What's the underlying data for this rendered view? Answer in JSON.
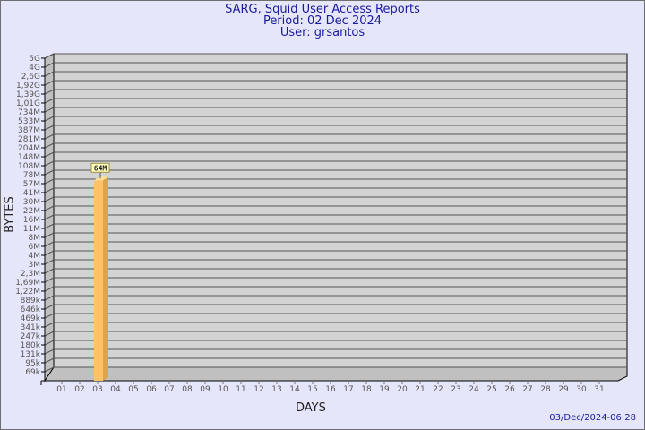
{
  "header": {
    "title": "SARG, Squid User Access Reports",
    "period": "Period: 02 Dec 2024",
    "user": "User: grsantos"
  },
  "footer": {
    "timestamp": "03/Dec/2024-06:28"
  },
  "colors": {
    "background": "#e6e6fa",
    "plot_wall": "#d3d3d3",
    "bar_front": "#ffc266",
    "bar_side": "#e0a24a",
    "title_text": "#1a1aa0",
    "data_label_bg": "#ffffc0"
  },
  "chart_data": {
    "type": "bar",
    "style": "3d",
    "xlabel": "DAYS",
    "ylabel": "BYTES",
    "y_scale": "log",
    "grid": true,
    "categories": [
      "01",
      "02",
      "03",
      "04",
      "05",
      "06",
      "07",
      "08",
      "09",
      "10",
      "11",
      "12",
      "13",
      "14",
      "15",
      "16",
      "17",
      "18",
      "19",
      "20",
      "21",
      "22",
      "23",
      "24",
      "25",
      "26",
      "27",
      "28",
      "29",
      "30",
      "31"
    ],
    "y_tick_labels": [
      "5G",
      "4G",
      "2,6G",
      "1,92G",
      "1,39G",
      "1,01G",
      "734M",
      "533M",
      "387M",
      "281M",
      "204M",
      "148M",
      "108M",
      "78M",
      "57M",
      "41M",
      "30M",
      "22M",
      "16M",
      "11M",
      "8M",
      "6M",
      "4M",
      "3M",
      "2,3M",
      "1,69M",
      "1,22M",
      "889k",
      "646k",
      "469k",
      "341k",
      "247k",
      "180k",
      "131k",
      "95k",
      "69k"
    ],
    "series": [
      {
        "values": [
          null,
          64000000,
          null,
          null,
          null,
          null,
          null,
          null,
          null,
          null,
          null,
          null,
          null,
          null,
          null,
          null,
          null,
          null,
          null,
          null,
          null,
          null,
          null,
          null,
          null,
          null,
          null,
          null,
          null,
          null,
          null
        ],
        "data_labels": [
          null,
          "64M",
          null,
          null,
          null,
          null,
          null,
          null,
          null,
          null,
          null,
          null,
          null,
          null,
          null,
          null,
          null,
          null,
          null,
          null,
          null,
          null,
          null,
          null,
          null,
          null,
          null,
          null,
          null,
          null,
          null
        ]
      }
    ]
  }
}
